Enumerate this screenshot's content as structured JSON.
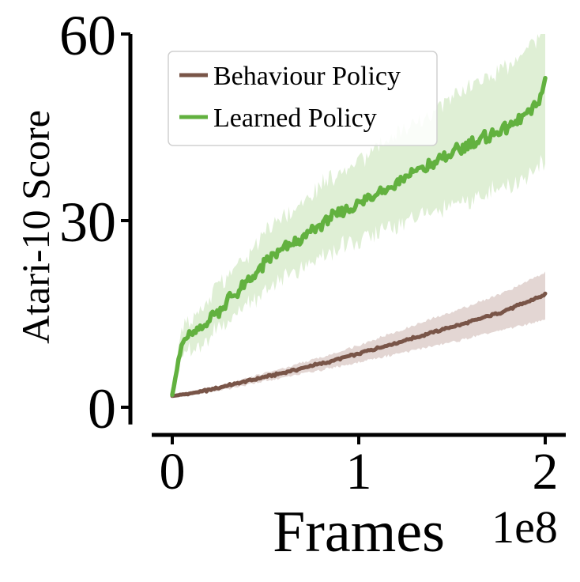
{
  "chart_data": {
    "type": "line",
    "title": "",
    "xlabel": "Frames",
    "ylabel": "Atari-10 Score",
    "x_offset_text": "1e8",
    "xlim": [
      -0.12,
      2.12
    ],
    "ylim": [
      -2,
      60
    ],
    "x_ticks": [
      0,
      1,
      2
    ],
    "x_tick_labels": [
      "0",
      "1",
      "2"
    ],
    "y_ticks": [
      0,
      30,
      60
    ],
    "y_tick_labels": [
      "0",
      "30",
      "60"
    ],
    "grid": false,
    "legend": {
      "placement": "top-left",
      "frame": true
    },
    "x": [
      0,
      0.05,
      0.1,
      0.15,
      0.2,
      0.25,
      0.3,
      0.35,
      0.4,
      0.45,
      0.5,
      0.55,
      0.6,
      0.65,
      0.7,
      0.75,
      0.8,
      0.85,
      0.9,
      0.95,
      1.0,
      1.05,
      1.1,
      1.15,
      1.2,
      1.25,
      1.3,
      1.35,
      1.4,
      1.45,
      1.5,
      1.55,
      1.6,
      1.65,
      1.7,
      1.75,
      1.8,
      1.85,
      1.9,
      1.95,
      2.0
    ],
    "series": [
      {
        "name": "Behaviour Policy",
        "color": "#795548",
        "band_color": "#e3d6d3",
        "values": [
          1.8,
          2.0,
          2.2,
          2.5,
          2.8,
          3.1,
          3.5,
          3.8,
          4.2,
          4.5,
          4.9,
          5.2,
          5.6,
          5.9,
          6.3,
          6.7,
          7.0,
          7.4,
          7.8,
          8.2,
          8.6,
          9.1,
          9.5,
          9.9,
          10.3,
          10.8,
          11.2,
          11.6,
          12.1,
          12.5,
          12.9,
          13.3,
          13.8,
          14.2,
          14.7,
          15.1,
          15.7,
          16.3,
          16.9,
          17.5,
          18.1
        ],
        "lower": [
          1.6,
          1.8,
          2.0,
          2.2,
          2.5,
          2.7,
          3.0,
          3.3,
          3.6,
          3.9,
          4.2,
          4.5,
          4.8,
          5.1,
          5.4,
          5.7,
          6.0,
          6.3,
          6.6,
          6.9,
          7.2,
          7.6,
          7.9,
          8.2,
          8.5,
          8.9,
          9.2,
          9.5,
          9.9,
          10.2,
          10.5,
          10.8,
          11.2,
          11.5,
          11.9,
          12.2,
          12.6,
          13.0,
          13.3,
          13.7,
          14.0
        ],
        "upper": [
          2.0,
          2.2,
          2.5,
          2.8,
          3.1,
          3.5,
          3.9,
          4.3,
          4.7,
          5.1,
          5.5,
          5.9,
          6.3,
          6.7,
          7.2,
          7.6,
          8.0,
          8.5,
          9.0,
          9.5,
          10.0,
          10.5,
          11.1,
          11.6,
          12.1,
          12.6,
          13.2,
          13.7,
          14.3,
          14.8,
          15.3,
          15.9,
          16.4,
          17.0,
          17.5,
          18.1,
          18.8,
          19.5,
          20.2,
          20.9,
          21.6
        ]
      },
      {
        "name": "Learned Policy",
        "color": "#62b13f",
        "band_color": "#dfefd5",
        "values": [
          2.0,
          10.0,
          11.5,
          12.6,
          14.3,
          15.8,
          17.2,
          18.5,
          19.9,
          21.3,
          23.0,
          24.5,
          25.5,
          26.4,
          27.1,
          28.3,
          29.6,
          30.5,
          31.3,
          32.0,
          32.8,
          33.6,
          34.5,
          35.2,
          36.0,
          36.9,
          37.7,
          38.5,
          39.2,
          40.1,
          40.9,
          41.6,
          42.3,
          43.0,
          43.6,
          44.3,
          45.1,
          46.0,
          47.0,
          48.5,
          52.0
        ],
        "lower": [
          1.5,
          8.0,
          9.0,
          10.0,
          11.4,
          12.7,
          14.0,
          15.2,
          16.4,
          17.6,
          18.9,
          20.1,
          21.0,
          21.8,
          22.4,
          23.3,
          24.3,
          25.0,
          25.6,
          26.1,
          26.7,
          27.3,
          28.0,
          28.5,
          29.1,
          29.7,
          30.3,
          30.9,
          31.4,
          32.0,
          32.6,
          33.1,
          33.6,
          34.1,
          34.5,
          35.0,
          35.6,
          36.2,
          36.9,
          38.0,
          40.0
        ],
        "upper": [
          2.5,
          12.5,
          14.5,
          15.8,
          17.7,
          19.5,
          21.1,
          22.6,
          24.2,
          25.8,
          27.8,
          29.6,
          30.8,
          31.9,
          32.8,
          34.2,
          35.7,
          36.8,
          37.8,
          38.7,
          39.6,
          40.6,
          41.7,
          42.5,
          43.5,
          44.6,
          45.6,
          46.6,
          47.5,
          48.6,
          49.7,
          50.6,
          51.5,
          52.4,
          53.2,
          54.1,
          55.1,
          56.3,
          57.5,
          59.5,
          64.0
        ]
      }
    ]
  }
}
